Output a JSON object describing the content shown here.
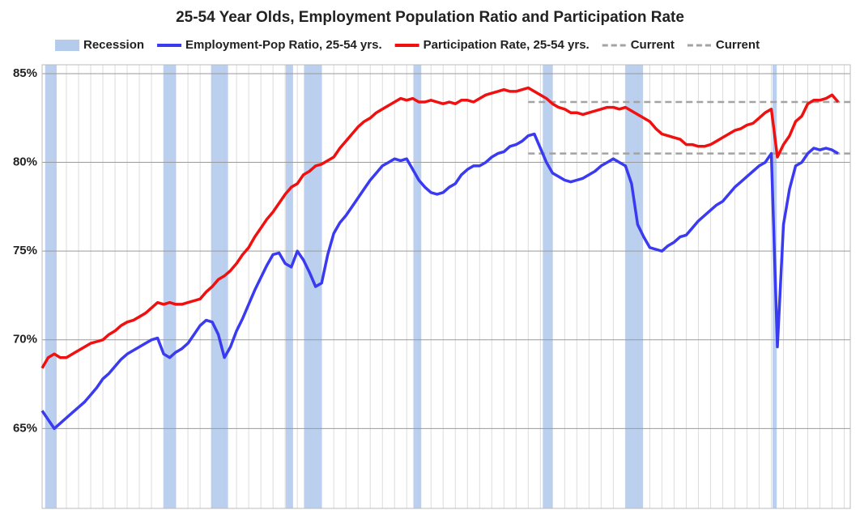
{
  "chart_data": {
    "type": "line",
    "title": "25-54 Year Olds, Employment Population Ratio and Participation Rate",
    "ylim": [
      60.5,
      85.5
    ],
    "yticks": [
      {
        "value": 65,
        "label": "65%"
      },
      {
        "value": 70,
        "label": "70%"
      },
      {
        "value": 75,
        "label": "75%"
      },
      {
        "value": 80,
        "label": "80%"
      },
      {
        "value": 85,
        "label": "85%"
      }
    ],
    "grid": true,
    "recessions": {
      "name": "Recession",
      "color": "#b4cbec",
      "spans": [
        [
          0.5,
          2.4
        ],
        [
          20.0,
          22.0
        ],
        [
          27.8,
          30.6
        ],
        [
          40.1,
          41.3
        ],
        [
          43.1,
          46.0
        ],
        [
          61.1,
          62.4
        ],
        [
          82.4,
          84.0
        ],
        [
          96.0,
          98.9
        ],
        [
          120.2,
          120.9
        ]
      ]
    },
    "series": [
      {
        "name": "Employment-Pop Ratio, 25-54 yrs.",
        "color": "#3a3af0",
        "values": [
          66.0,
          65.5,
          65.0,
          65.3,
          65.6,
          65.9,
          66.2,
          66.5,
          66.9,
          67.3,
          67.8,
          68.1,
          68.5,
          68.9,
          69.2,
          69.4,
          69.6,
          69.8,
          70.0,
          70.1,
          69.2,
          69.0,
          69.3,
          69.5,
          69.8,
          70.3,
          70.8,
          71.1,
          71.0,
          70.3,
          69.0,
          69.6,
          70.5,
          71.2,
          72.0,
          72.8,
          73.5,
          74.2,
          74.8,
          74.9,
          74.3,
          74.1,
          75.0,
          74.5,
          73.8,
          73.0,
          73.2,
          74.8,
          76.0,
          76.6,
          77.0,
          77.5,
          78.0,
          78.5,
          79.0,
          79.4,
          79.8,
          80.0,
          80.2,
          80.1,
          80.2,
          79.6,
          79.0,
          78.6,
          78.3,
          78.2,
          78.3,
          78.6,
          78.8,
          79.3,
          79.6,
          79.8,
          79.8,
          80.0,
          80.3,
          80.5,
          80.6,
          80.9,
          81.0,
          81.2,
          81.5,
          81.6,
          80.8,
          80.0,
          79.4,
          79.2,
          79.0,
          78.9,
          79.0,
          79.1,
          79.3,
          79.5,
          79.8,
          80.0,
          80.2,
          80.0,
          79.8,
          78.8,
          76.5,
          75.8,
          75.2,
          75.1,
          75.0,
          75.3,
          75.5,
          75.8,
          75.9,
          76.3,
          76.7,
          77.0,
          77.3,
          77.6,
          77.8,
          78.2,
          78.6,
          78.9,
          79.2,
          79.5,
          79.8,
          80.0,
          80.5,
          69.6,
          76.5,
          78.5,
          79.8,
          80.0,
          80.5,
          80.8,
          80.7,
          80.8,
          80.7,
          80.5
        ]
      },
      {
        "name": "Participation Rate, 25-54 yrs.",
        "color": "#f01010",
        "values": [
          68.4,
          69.0,
          69.2,
          69.0,
          69.0,
          69.2,
          69.4,
          69.6,
          69.8,
          69.9,
          70.0,
          70.3,
          70.5,
          70.8,
          71.0,
          71.1,
          71.3,
          71.5,
          71.8,
          72.1,
          72.0,
          72.1,
          72.0,
          72.0,
          72.1,
          72.2,
          72.3,
          72.7,
          73.0,
          73.4,
          73.6,
          73.9,
          74.3,
          74.8,
          75.2,
          75.8,
          76.3,
          76.8,
          77.2,
          77.7,
          78.2,
          78.6,
          78.8,
          79.3,
          79.5,
          79.8,
          79.9,
          80.1,
          80.3,
          80.8,
          81.2,
          81.6,
          82.0,
          82.3,
          82.5,
          82.8,
          83.0,
          83.2,
          83.4,
          83.6,
          83.5,
          83.6,
          83.4,
          83.4,
          83.5,
          83.4,
          83.3,
          83.4,
          83.3,
          83.5,
          83.5,
          83.4,
          83.6,
          83.8,
          83.9,
          84.0,
          84.1,
          84.0,
          84.0,
          84.1,
          84.2,
          84.0,
          83.8,
          83.6,
          83.3,
          83.1,
          83.0,
          82.8,
          82.8,
          82.7,
          82.8,
          82.9,
          83.0,
          83.1,
          83.1,
          83.0,
          83.1,
          82.9,
          82.7,
          82.5,
          82.3,
          81.9,
          81.6,
          81.5,
          81.4,
          81.3,
          81.0,
          81.0,
          80.9,
          80.9,
          81.0,
          81.2,
          81.4,
          81.6,
          81.8,
          81.9,
          82.1,
          82.2,
          82.5,
          82.8,
          83.0,
          80.3,
          81.0,
          81.5,
          82.3,
          82.6,
          83.3,
          83.5,
          83.5,
          83.6,
          83.8,
          83.4
        ]
      }
    ],
    "current_lines": [
      {
        "name": "Current",
        "value": 83.4,
        "color": "#a3a3a3"
      },
      {
        "name": "Current",
        "value": 80.5,
        "color": "#a3a3a3"
      }
    ]
  }
}
